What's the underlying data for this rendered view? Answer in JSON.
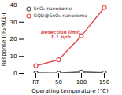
{
  "chart_data": {
    "type": "line",
    "categories": [
      "RT",
      "50",
      "100",
      "150"
    ],
    "xlabel": "Operating temperature (°C)",
    "ylabel": "Response ((R₀/R⁧)-1)",
    "ylim": [
      0,
      40
    ],
    "yticks": [
      0,
      10,
      20,
      30,
      40
    ],
    "grid": false,
    "legend": "upper left",
    "series": [
      {
        "name": "SnO₂ nanodome",
        "color": "#555555",
        "marker": "o",
        "values": [
          0.2,
          0.1,
          0.8,
          0.3
        ]
      },
      {
        "name": "GQD@SnO₂ nanodome",
        "color": "#e05050",
        "marker": "o",
        "values": [
          4.5,
          8.0,
          22.0,
          38.5
        ]
      }
    ],
    "annotations": [
      {
        "text": "Detection limit\n1.1 ppb",
        "color": "#e05050"
      }
    ]
  }
}
